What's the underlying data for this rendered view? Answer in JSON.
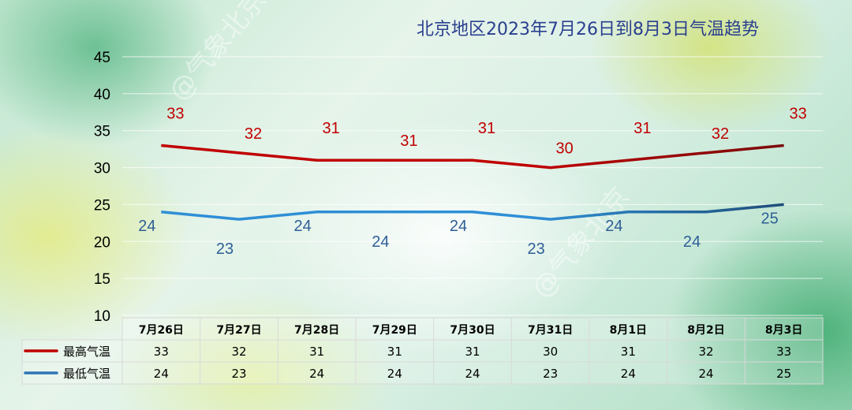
{
  "watermark_text": "@气象北京",
  "chart_data": {
    "type": "line",
    "title": "北京地区2023年7月26日到8月3日气温趋势",
    "categories": [
      "7月26日",
      "7月27日",
      "7月28日",
      "7月29日",
      "7月30日",
      "7月31日",
      "8月1日",
      "8月2日",
      "8月3日"
    ],
    "series": [
      {
        "name": "最高气温",
        "color": "#c00000",
        "values": [
          33,
          32,
          31,
          31,
          31,
          30,
          31,
          32,
          33
        ]
      },
      {
        "name": "最低气温",
        "color": "#2e75b6",
        "values": [
          24,
          23,
          24,
          24,
          24,
          23,
          24,
          24,
          25
        ]
      }
    ],
    "yticks": [
      10,
      15,
      20,
      25,
      30,
      35,
      40,
      45
    ],
    "ylim": [
      10,
      45
    ],
    "grid": true,
    "legend": "data-table"
  }
}
